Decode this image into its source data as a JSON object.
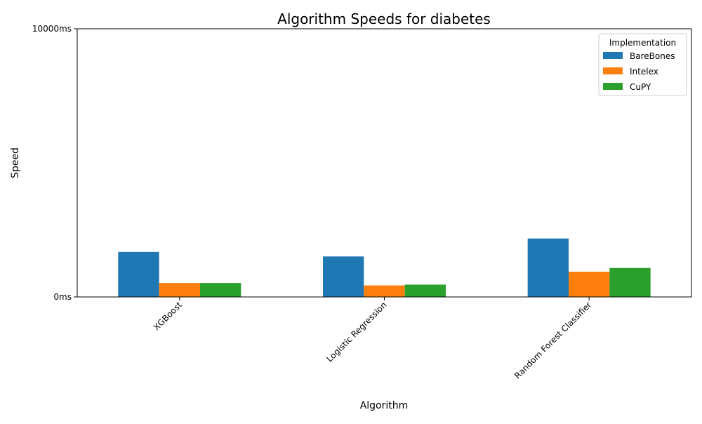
{
  "chart_data": {
    "type": "bar",
    "title": "Algorithm Speeds for diabetes",
    "xlabel": "Algorithm",
    "ylabel": "Speed",
    "categories": [
      "XGBoost",
      "Logistic Regression",
      "Random Forest Classifier"
    ],
    "series": [
      {
        "name": "BareBones",
        "values": [
          1680,
          1510,
          2180
        ]
      },
      {
        "name": "Intelex",
        "values": [
          520,
          430,
          940
        ]
      },
      {
        "name": "CuPY",
        "values": [
          520,
          460,
          1080
        ]
      }
    ],
    "ylim": [
      0,
      10000
    ],
    "y_ticks": [
      {
        "value": 0,
        "label": "0ms"
      },
      {
        "value": 10000,
        "label": "10000ms"
      }
    ],
    "grid": false,
    "legend": {
      "title": "Implementation",
      "placement": "top-right"
    },
    "colors": {
      "BareBones": "#1f77b4",
      "Intelex": "#ff7f0e",
      "CuPY": "#2ca02c"
    }
  }
}
